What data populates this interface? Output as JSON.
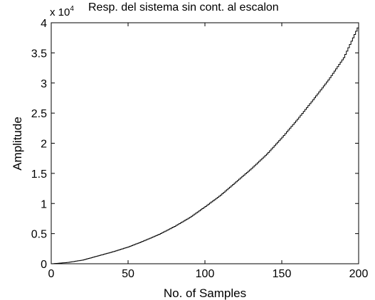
{
  "chart_data": {
    "type": "line",
    "title": "Resp. del sistema sin cont. al escalon",
    "xlabel": "No. of Samples",
    "ylabel": "Amplitude",
    "y_multiplier": {
      "base": "x 10",
      "exponent": "4"
    },
    "xlim": [
      0,
      200
    ],
    "ylim": [
      0,
      4
    ],
    "xticks": [
      0,
      50,
      100,
      150,
      200
    ],
    "xtick_labels": [
      "0",
      "50",
      "100",
      "150",
      "200"
    ],
    "yticks": [
      0,
      0.5,
      1,
      1.5,
      2,
      2.5,
      3,
      3.5,
      4
    ],
    "ytick_labels": [
      "0",
      "0.5",
      "1",
      "1.5",
      "2",
      "2.5",
      "3",
      "3.5",
      "4"
    ],
    "grid": false,
    "legend": "none",
    "line_color": "#000000",
    "step_style": true,
    "series": [
      {
        "x": [
          0,
          10,
          20,
          30,
          40,
          50,
          60,
          70,
          80,
          90,
          100,
          110,
          120,
          130,
          140,
          150,
          160,
          170,
          180,
          190,
          200
        ],
        "y": [
          0,
          0.02,
          0.06,
          0.13,
          0.2,
          0.28,
          0.38,
          0.49,
          0.62,
          0.77,
          0.95,
          1.14,
          1.36,
          1.58,
          1.82,
          2.1,
          2.4,
          2.72,
          3.05,
          3.42,
          3.97
        ]
      }
    ]
  }
}
